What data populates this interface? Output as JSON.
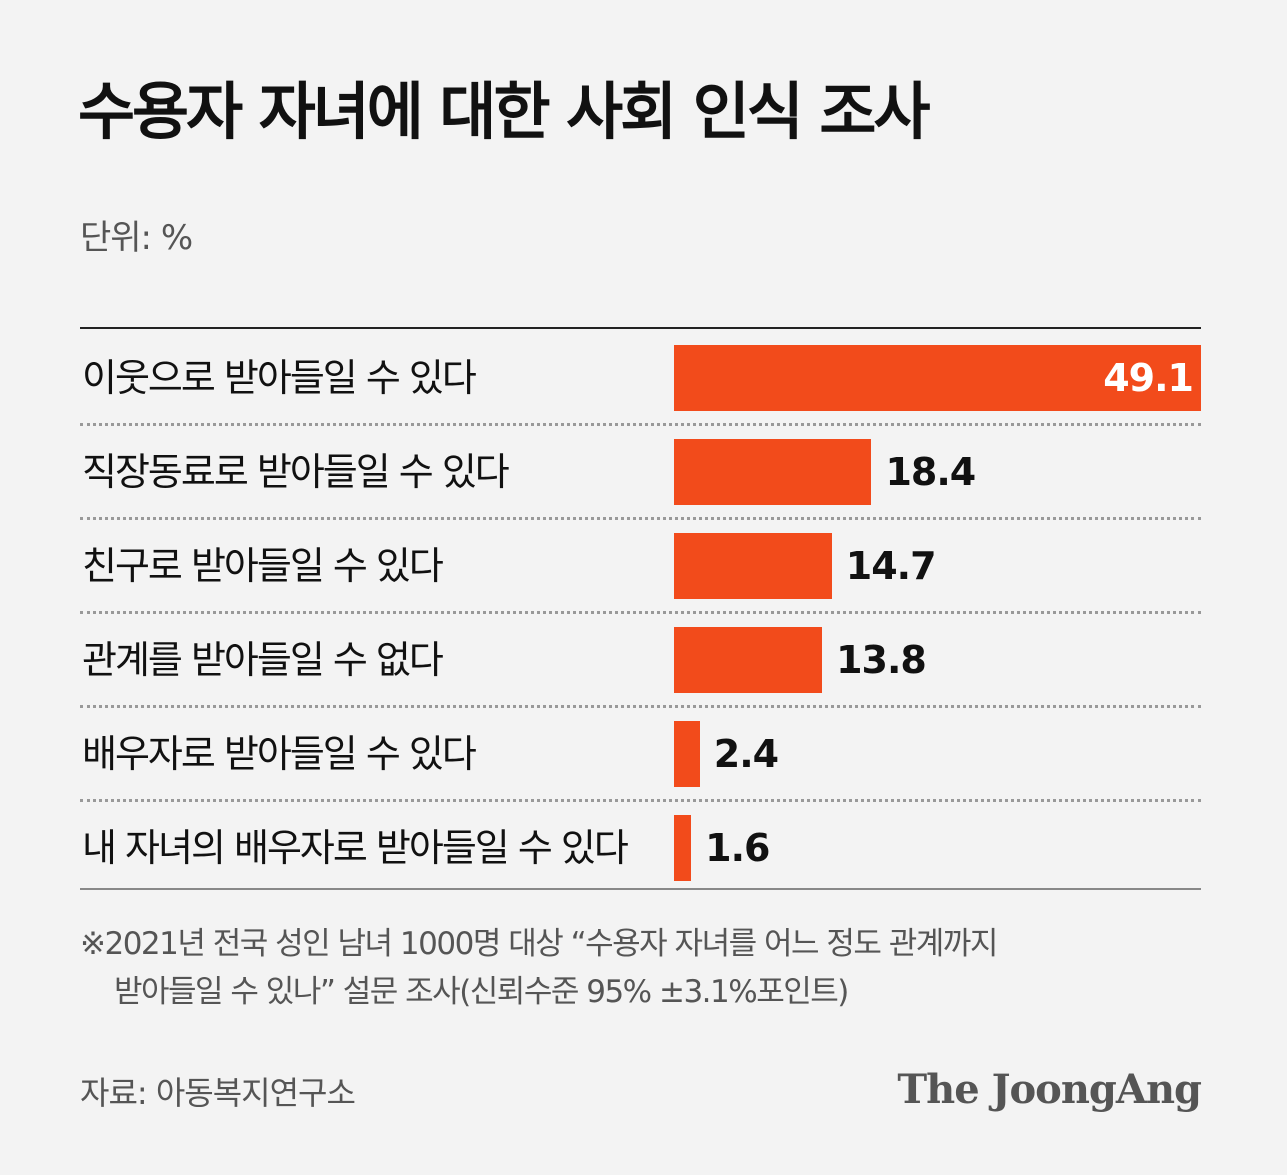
{
  "title": "수용자 자녀에 대한 사회 인식 조사",
  "unit": "단위: %",
  "chart_data": {
    "type": "bar",
    "orientation": "horizontal",
    "title": "수용자 자녀에 대한 사회 인식 조사",
    "categories": [
      "이웃으로 받아들일 수 있다",
      "직장동료로 받아들일 수 있다",
      "친구로 받아들일 수 있다",
      "관계를 받아들일 수 없다",
      "배우자로 받아들일 수 있다",
      "내 자녀의 배우자로 받아들일 수 있다"
    ],
    "values": [
      49.1,
      18.4,
      14.7,
      13.8,
      2.4,
      1.6
    ],
    "value_labels": [
      "49.1",
      "18.4",
      "14.7",
      "13.8",
      "2.4",
      "1.6"
    ],
    "xlim": [
      0,
      49.1
    ],
    "unit": "%",
    "bar_color": "#f24b1b"
  },
  "note_line1": "※2021년 전국 성인 남녀 1000명 대상 “수용자 자녀를 어느 정도 관계까지",
  "note_line2": "받아들일 수 있나” 설문 조사(신뢰수준 95% ±3.1%포인트)",
  "source": "자료: 아동복지연구소",
  "logo": "The JoongAng"
}
